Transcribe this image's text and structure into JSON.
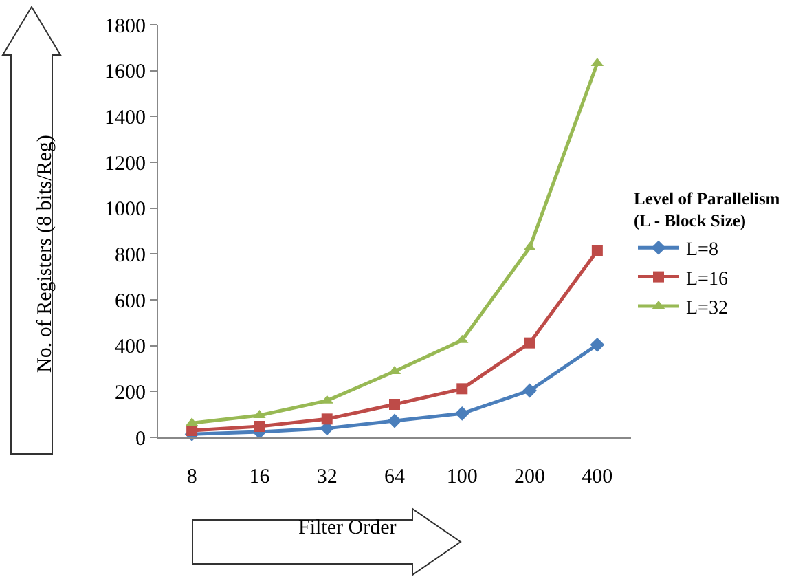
{
  "chart_data": {
    "type": "line",
    "categories": [
      "8",
      "16",
      "32",
      "64",
      "100",
      "200",
      "400"
    ],
    "xlabel": "Filter Order",
    "ylabel": "No. of Registers (8 bits/Reg)",
    "legend_title": "Level of Parallelism (L - Block Size)",
    "ylim": [
      0,
      1800
    ],
    "yticks": [
      0,
      200,
      400,
      600,
      800,
      1000,
      1200,
      1400,
      1600,
      1800
    ],
    "legend": "right",
    "series": [
      {
        "name": "L=8",
        "color": "#4a7ebb",
        "marker": "diamond",
        "values": [
          14,
          24,
          40,
          72,
          104,
          204,
          404
        ]
      },
      {
        "name": "L=16",
        "color": "#be4b48",
        "marker": "square",
        "values": [
          30,
          48,
          80,
          144,
          212,
          412,
          814
        ]
      },
      {
        "name": "L=32",
        "color": "#98b954",
        "marker": "triangle",
        "values": [
          62,
          96,
          160,
          288,
          424,
          828,
          1632
        ]
      }
    ]
  }
}
